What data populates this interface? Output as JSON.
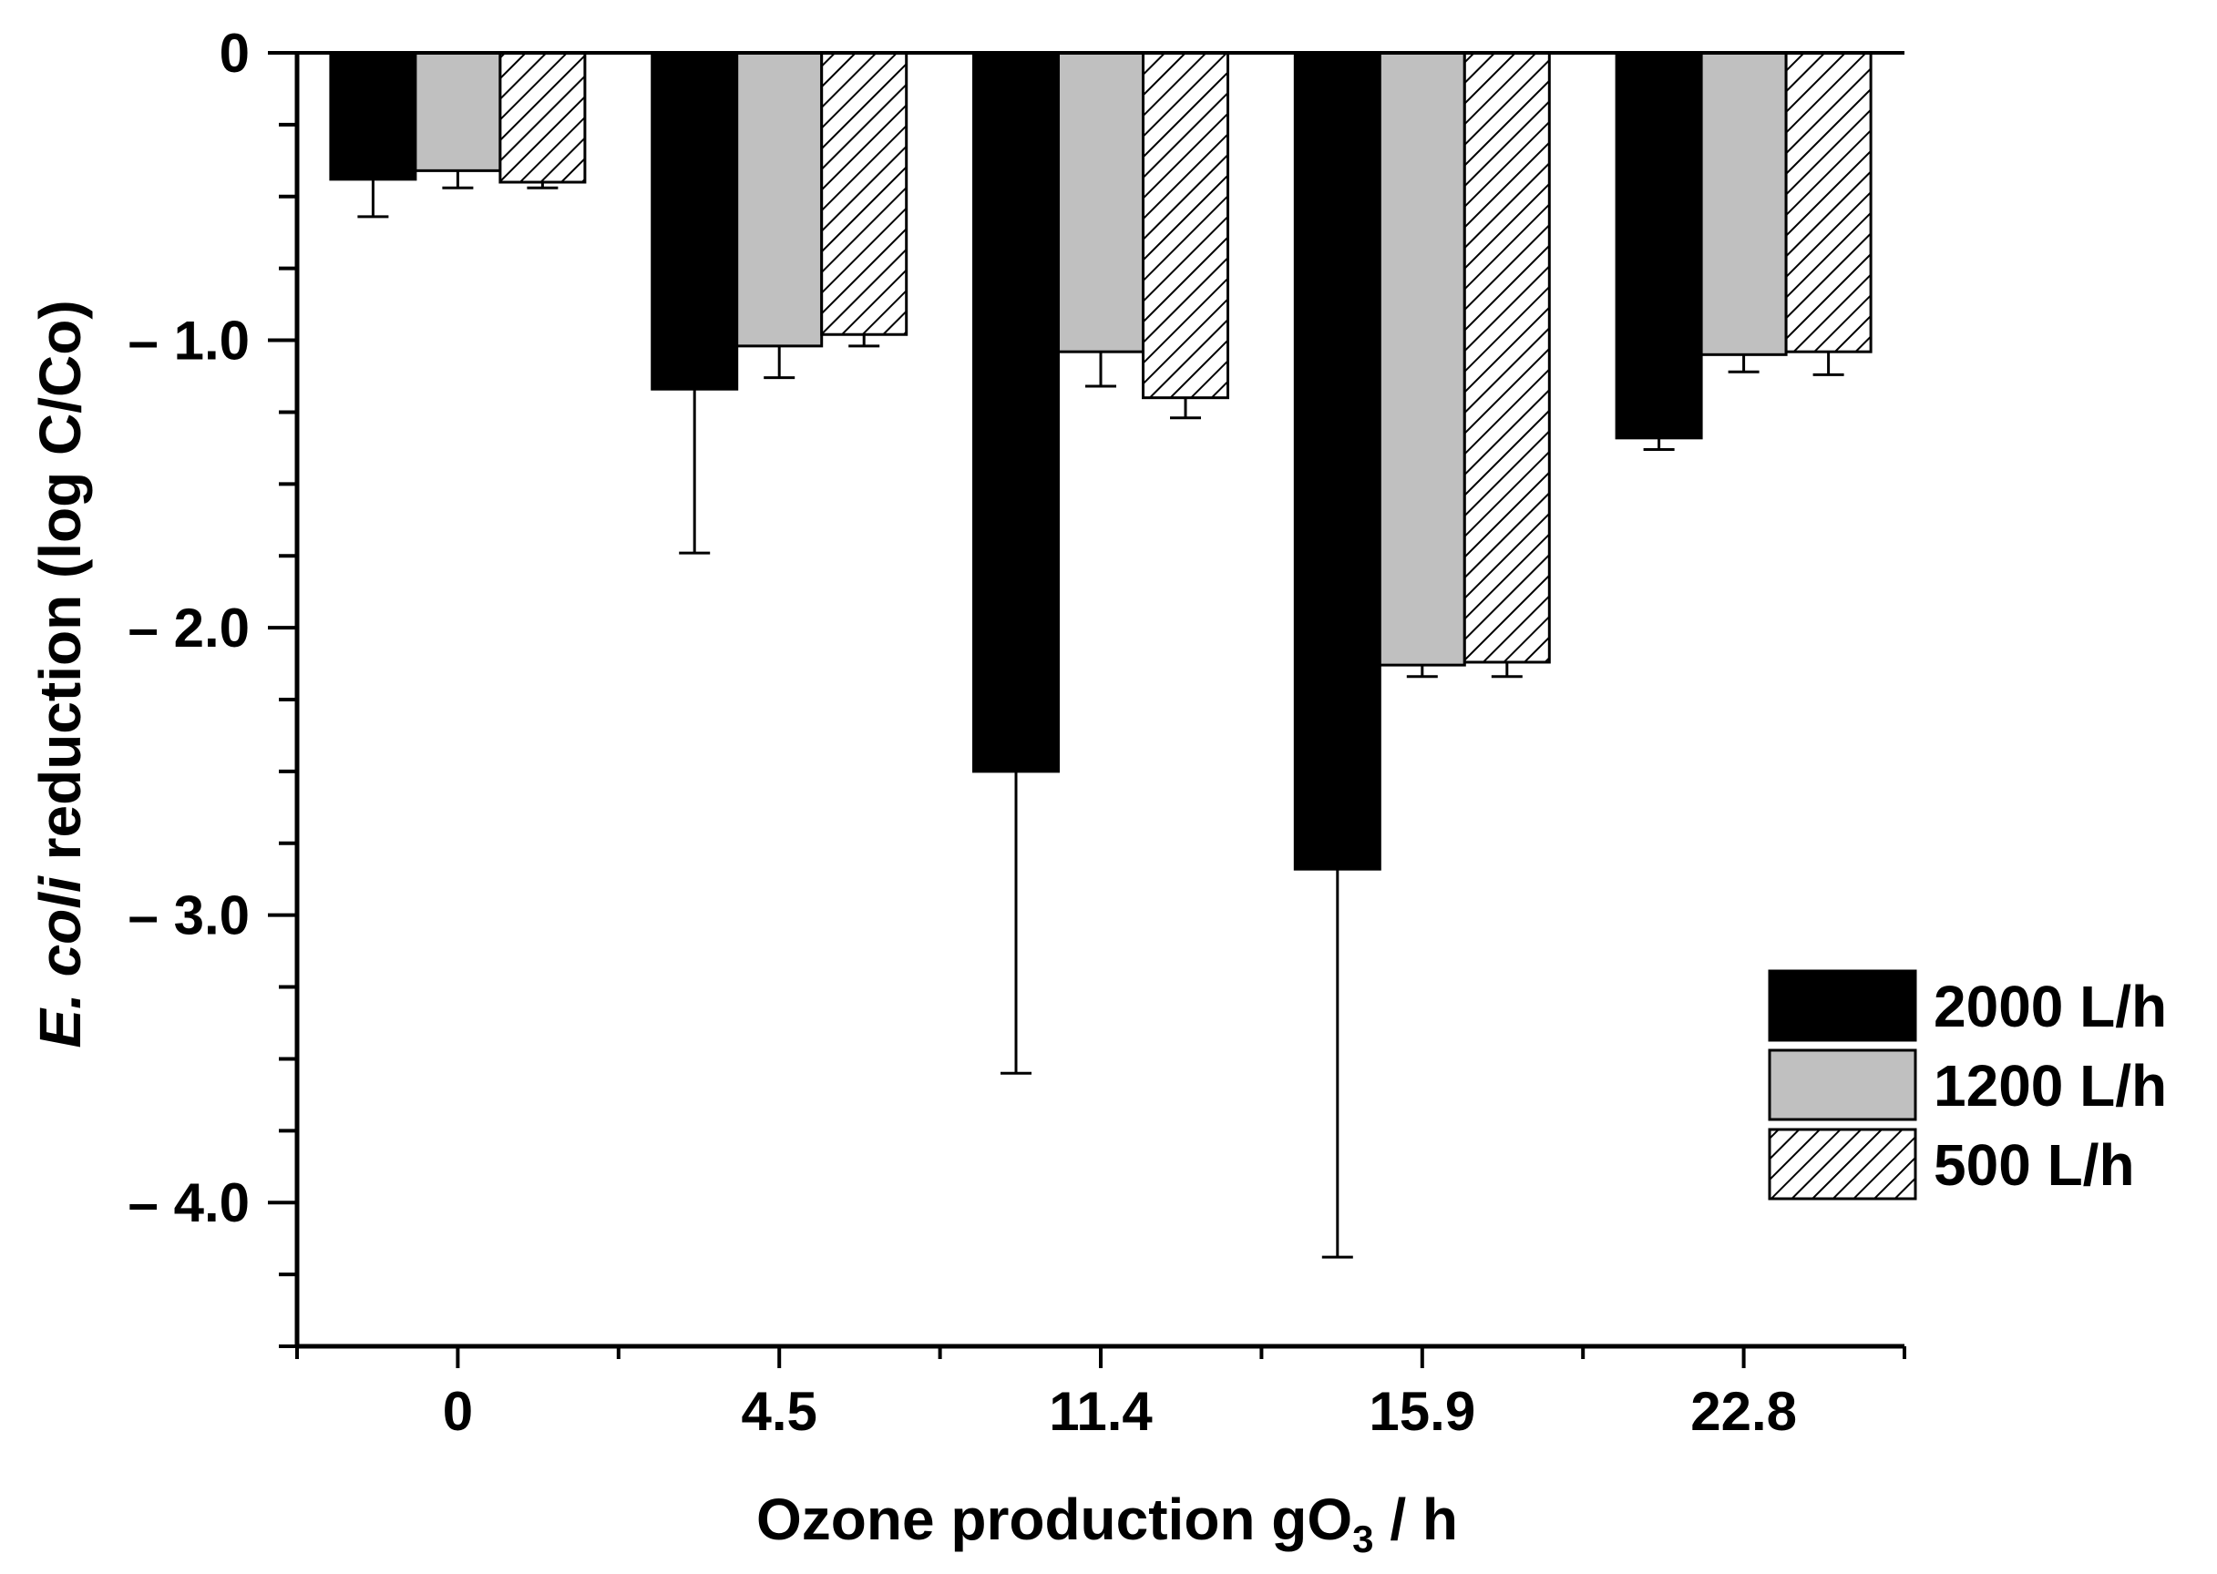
{
  "chart_data": {
    "type": "bar",
    "categories": [
      "0",
      "4.5",
      "11.4",
      "15.9",
      "22.8"
    ],
    "series": [
      {
        "name": "2000 L/h",
        "values": [
          -0.44,
          -1.17,
          -2.5,
          -2.84,
          -1.34
        ],
        "error": [
          0.13,
          0.57,
          1.05,
          1.35,
          0.04
        ],
        "fill": "#000000",
        "pattern": "solid"
      },
      {
        "name": "1200 L/h",
        "values": [
          -0.41,
          -1.02,
          -1.04,
          -2.13,
          -1.05
        ],
        "error": [
          0.06,
          0.11,
          0.12,
          0.04,
          0.06
        ],
        "fill": "#c0c0c0",
        "pattern": "solid"
      },
      {
        "name": "500 L/h",
        "values": [
          -0.45,
          -0.98,
          -1.2,
          -2.12,
          -1.04
        ],
        "error": [
          0.02,
          0.04,
          0.07,
          0.05,
          0.08
        ],
        "fill": "#ffffff",
        "pattern": "hatch"
      }
    ],
    "ylim": [
      -4.5,
      0
    ],
    "yticks": [
      {
        "value": 0,
        "label": "0"
      },
      {
        "value": -1,
        "label": "– 1.0"
      },
      {
        "value": -2,
        "label": "– 2.0"
      },
      {
        "value": -3,
        "label": "– 3.0"
      },
      {
        "value": -4,
        "label": "– 4.0"
      }
    ],
    "ylabel_italic": "E. coli",
    "ylabel_rest": " reduction (log C/Co)",
    "xlabel_main": "Ozone production gO",
    "xlabel_sub": "3",
    "xlabel_tail": " / h",
    "legend_position": "right",
    "grid": false
  }
}
